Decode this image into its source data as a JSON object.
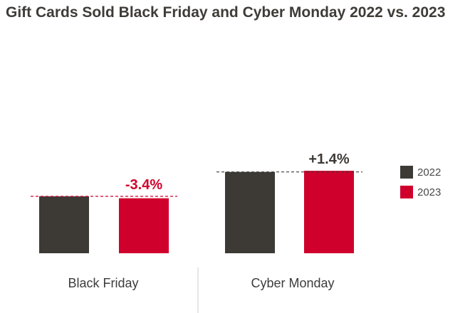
{
  "chart_data": {
    "type": "bar",
    "title": "Gift Cards Sold Black Friday and Cyber Monday 2022 vs. 2023",
    "categories": [
      "Black Friday",
      "Cyber Monday"
    ],
    "series": [
      {
        "name": "2022",
        "values": [
          100,
          142.9
        ]
      },
      {
        "name": "2023",
        "values": [
          96.6,
          144.9
        ]
      }
    ],
    "annotations": [
      "-3.4%",
      "+1.4%"
    ],
    "legend_position": "right",
    "grid": false,
    "colors": {
      "2022": "#3d3a36",
      "2023": "#d0002c",
      "annotation_black_friday": "#d0002c",
      "annotation_cyber_monday": "#3d3a36",
      "divider": "#cccccc"
    }
  }
}
